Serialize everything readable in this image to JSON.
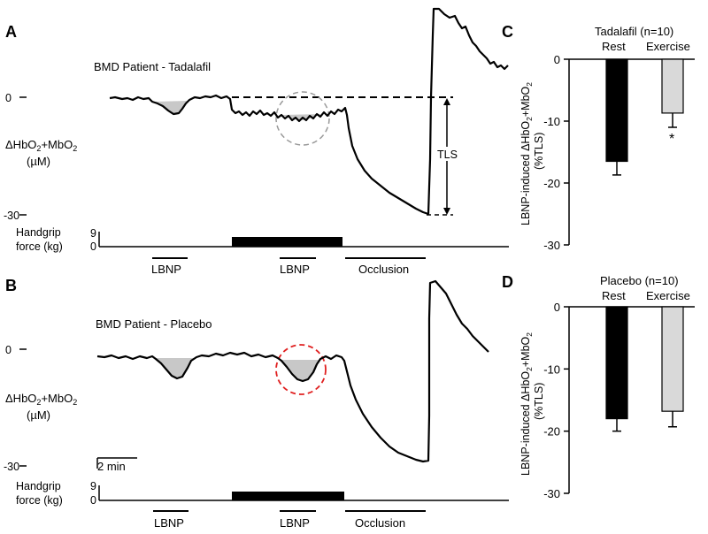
{
  "panels": {
    "A": {
      "label": "A",
      "title": "BMD Patient - Tadalafil",
      "ylabel_line1": "ΔHbO",
      "ylabel_sub1": "2",
      "ylabel_mid": "+MbO",
      "ylabel_sub2": "2",
      "ylabel_line2": "(µM)",
      "y_top_tick": "0",
      "y_bottom_tick": "-30",
      "tls_label": "TLS",
      "handgrip_label1": "Handgrip",
      "handgrip_label2": "force (kg)",
      "handgrip_tick_top": "9",
      "handgrip_tick_bottom": "0",
      "lbnp1": "LBNP",
      "lbnp2": "LBNP",
      "occlusion": "Occlusion"
    },
    "B": {
      "label": "B",
      "title": "BMD Patient - Placebo",
      "ylabel_line1": "ΔHbO",
      "ylabel_sub1": "2",
      "ylabel_mid": "+MbO",
      "ylabel_sub2": "2",
      "ylabel_line2": "(µM)",
      "y_top_tick": "0",
      "y_bottom_tick": "-30",
      "scale_bar": "2 min",
      "handgrip_label1": "Handgrip",
      "handgrip_label2": "force (kg)",
      "handgrip_tick_top": "9",
      "handgrip_tick_bottom": "0",
      "lbnp1": "LBNP",
      "lbnp2": "LBNP",
      "occlusion": "Occlusion"
    },
    "C": {
      "label": "C"
    },
    "D": {
      "label": "D"
    }
  },
  "bar_ylabel": {
    "line1": "LBNP-induced ΔHbO",
    "sub1": "2",
    "mid": "+MbO",
    "sub2": "2",
    "line2": "(%TLS)"
  },
  "chart_data": [
    {
      "panel": "A",
      "type": "line",
      "title": "BMD Patient - Tadalafil",
      "ylabel": "ΔHbO2+MbO2 (µM)",
      "ylim": [
        -30,
        0
      ],
      "annotations": [
        "LBNP",
        "LBNP",
        "Occlusion",
        "TLS"
      ]
    },
    {
      "panel": "C",
      "type": "bar",
      "title": "Tadalafil (n=10)",
      "categories": [
        "Rest",
        "Exercise"
      ],
      "values": [
        -16.5,
        -8.7
      ],
      "errors": [
        2.2,
        2.3
      ],
      "colors": [
        "#000000",
        "#d9d9d9"
      ],
      "significance": [
        "",
        "*"
      ],
      "ylabel": "LBNP-induced ΔHbO2+MbO2 (%TLS)",
      "yticks": [
        "0",
        "-10",
        "-20",
        "-30"
      ],
      "ylim": [
        -30,
        0
      ]
    },
    {
      "panel": "B",
      "type": "line",
      "title": "BMD Patient - Placebo",
      "ylabel": "ΔHbO2+MbO2 (µM)",
      "ylim": [
        -30,
        0
      ],
      "annotations": [
        "LBNP",
        "LBNP",
        "Occlusion"
      ],
      "scale_bar": "2 min"
    },
    {
      "panel": "D",
      "type": "bar",
      "title": "Placebo (n=10)",
      "categories": [
        "Rest",
        "Exercise"
      ],
      "values": [
        -18.0,
        -16.8
      ],
      "errors": [
        2.0,
        2.5
      ],
      "colors": [
        "#000000",
        "#d9d9d9"
      ],
      "significance": [
        "",
        ""
      ],
      "ylabel": "LBNP-induced ΔHbO2+MbO2 (%TLS)",
      "yticks": [
        "0",
        "-10",
        "-20",
        "-30"
      ],
      "ylim": [
        -30,
        0
      ]
    }
  ]
}
